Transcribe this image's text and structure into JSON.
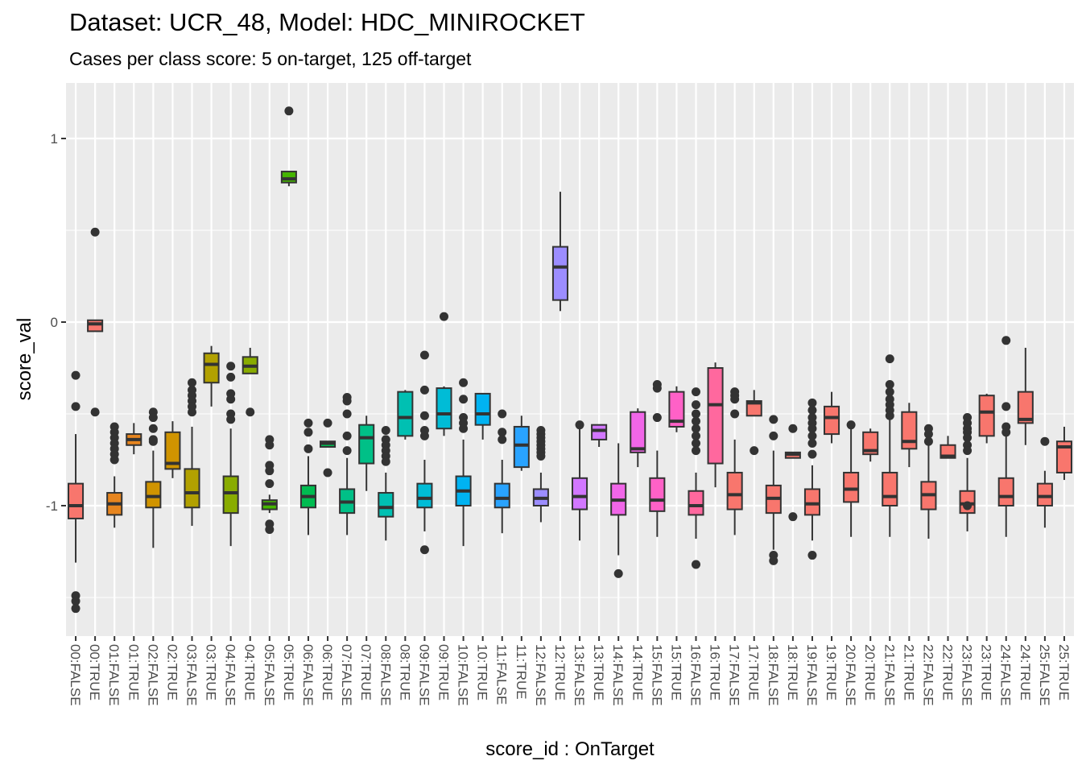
{
  "chart_data": {
    "type": "boxplot",
    "title": "Dataset: UCR_48, Model: HDC_MINIROCKET",
    "subtitle": "Cases per class score: 5 on-target, 125 off-target",
    "xlabel": "score_id : OnTarget",
    "ylabel": "score_val",
    "ylim": [
      -1.7,
      1.25
    ],
    "yticks": [
      1,
      0,
      -1
    ],
    "grid": true,
    "legend": "none",
    "categories": [
      "00:FALSE",
      "00:TRUE",
      "01:FALSE",
      "01:TRUE",
      "02:FALSE",
      "02:TRUE",
      "03:FALSE",
      "03:TRUE",
      "04:FALSE",
      "04:TRUE",
      "05:FALSE",
      "05:TRUE",
      "06:FALSE",
      "06:TRUE",
      "07:FALSE",
      "07:TRUE",
      "08:FALSE",
      "08:TRUE",
      "09:FALSE",
      "09:TRUE",
      "10:FALSE",
      "10:TRUE",
      "11:FALSE",
      "11:TRUE",
      "12:FALSE",
      "12:TRUE",
      "13:FALSE",
      "13:TRUE",
      "14:FALSE",
      "14:TRUE",
      "15:FALSE",
      "15:TRUE",
      "16:FALSE",
      "16:TRUE",
      "17:FALSE",
      "17:TRUE",
      "18:FALSE",
      "18:TRUE",
      "19:FALSE",
      "19:TRUE",
      "20:FALSE",
      "20:TRUE",
      "21:FALSE",
      "21:TRUE",
      "22:FALSE",
      "22:TRUE",
      "23:FALSE",
      "23:TRUE",
      "24:FALSE",
      "24:TRUE",
      "25:FALSE",
      "25:TRUE"
    ],
    "class_colors": [
      "#F8766D",
      "#E7851E",
      "#D09400",
      "#B2A100",
      "#89AC00",
      "#45B500",
      "#00BC51",
      "#00C087",
      "#00C0B2",
      "#00BCD6",
      "#00B3F2",
      "#29A3FF",
      "#9C8DFF",
      "#D277FF",
      "#F166E8",
      "#FF61C7",
      "#FF689E",
      "#F8766D",
      "#F8766D",
      "#F8766D",
      "#F8766D",
      "#F8766D",
      "#F8766D",
      "#F8766D",
      "#F8766D",
      "#F8766D"
    ],
    "boxes": [
      {
        "q1": -1.07,
        "med": -1.0,
        "q3": -0.88,
        "lo": -1.31,
        "hi": -0.61,
        "out": [
          -0.29,
          -0.46,
          -1.49,
          -1.52,
          -1.56
        ]
      },
      {
        "q1": -0.05,
        "med": -0.01,
        "q3": 0.01,
        "lo": -0.05,
        "hi": 0.01,
        "out": [
          0.49,
          -0.49
        ]
      },
      {
        "q1": -1.05,
        "med": -0.99,
        "q3": -0.93,
        "lo": -1.12,
        "hi": -0.84,
        "out": [
          -0.57,
          -0.6,
          -0.63,
          -0.66,
          -0.69,
          -0.72,
          -0.75
        ]
      },
      {
        "q1": -0.67,
        "med": -0.64,
        "q3": -0.61,
        "lo": -0.72,
        "hi": -0.55,
        "out": []
      },
      {
        "q1": -1.01,
        "med": -0.95,
        "q3": -0.87,
        "lo": -1.23,
        "hi": -0.7,
        "out": [
          -0.49,
          -0.52,
          -0.58,
          -0.64,
          -0.65
        ]
      },
      {
        "q1": -0.8,
        "med": -0.77,
        "q3": -0.6,
        "lo": -0.85,
        "hi": -0.54,
        "out": []
      },
      {
        "q1": -1.01,
        "med": -0.93,
        "q3": -0.8,
        "lo": -1.11,
        "hi": -0.57,
        "out": [
          -0.33,
          -0.37,
          -0.4,
          -0.43,
          -0.46,
          -0.49
        ]
      },
      {
        "q1": -0.33,
        "med": -0.23,
        "q3": -0.17,
        "lo": -0.46,
        "hi": -0.13,
        "out": []
      },
      {
        "q1": -1.04,
        "med": -0.93,
        "q3": -0.84,
        "lo": -1.22,
        "hi": -0.58,
        "out": [
          -0.24,
          -0.3,
          -0.39,
          -0.42,
          -0.5,
          -0.53
        ]
      },
      {
        "q1": -0.28,
        "med": -0.24,
        "q3": -0.19,
        "lo": -0.28,
        "hi": -0.14,
        "out": [
          -0.49
        ]
      },
      {
        "q1": -1.02,
        "med": -0.99,
        "q3": -0.97,
        "lo": -1.04,
        "hi": -0.94,
        "out": [
          -0.64,
          -0.67,
          -0.78,
          -0.81,
          -0.88,
          -1.1,
          -1.13
        ]
      },
      {
        "q1": 0.76,
        "med": 0.78,
        "q3": 0.82,
        "lo": 0.74,
        "hi": 0.82,
        "out": [
          1.15
        ]
      },
      {
        "q1": -1.01,
        "med": -0.95,
        "q3": -0.89,
        "lo": -1.16,
        "hi": -0.73,
        "out": [
          -0.55,
          -0.6,
          -0.69
        ]
      },
      {
        "q1": -0.68,
        "med": -0.66,
        "q3": -0.65,
        "lo": -0.68,
        "hi": -0.65,
        "out": [
          -0.55,
          -0.82
        ]
      },
      {
        "q1": -1.04,
        "med": -0.98,
        "q3": -0.91,
        "lo": -1.16,
        "hi": -0.74,
        "out": [
          -0.41,
          -0.43,
          -0.5,
          -0.62,
          -0.7
        ]
      },
      {
        "q1": -0.77,
        "med": -0.63,
        "q3": -0.56,
        "lo": -0.92,
        "hi": -0.51,
        "out": []
      },
      {
        "q1": -1.06,
        "med": -1.01,
        "q3": -0.93,
        "lo": -1.19,
        "hi": -0.82,
        "out": [
          -0.59,
          -0.64,
          -0.67,
          -0.7,
          -0.73,
          -0.76
        ]
      },
      {
        "q1": -0.62,
        "med": -0.52,
        "q3": -0.38,
        "lo": -0.64,
        "hi": -0.37,
        "out": []
      },
      {
        "q1": -1.01,
        "med": -0.96,
        "q3": -0.88,
        "lo": -1.14,
        "hi": -0.75,
        "out": [
          -0.18,
          -0.37,
          -0.51,
          -0.59,
          -0.62,
          -1.24
        ]
      },
      {
        "q1": -0.58,
        "med": -0.5,
        "q3": -0.36,
        "lo": -0.62,
        "hi": -0.35,
        "out": [
          0.03
        ]
      },
      {
        "q1": -1.0,
        "med": -0.92,
        "q3": -0.84,
        "lo": -1.22,
        "hi": -0.64,
        "out": [
          -0.33,
          -0.42,
          -0.52,
          -0.55,
          -0.58
        ]
      },
      {
        "q1": -0.56,
        "med": -0.5,
        "q3": -0.39,
        "lo": -0.64,
        "hi": -0.39,
        "out": []
      },
      {
        "q1": -1.01,
        "med": -0.96,
        "q3": -0.88,
        "lo": -1.15,
        "hi": -0.75,
        "out": [
          -0.5,
          -0.6,
          -0.64
        ]
      },
      {
        "q1": -0.79,
        "med": -0.67,
        "q3": -0.57,
        "lo": -0.81,
        "hi": -0.51,
        "out": []
      },
      {
        "q1": -1.0,
        "med": -0.96,
        "q3": -0.91,
        "lo": -1.09,
        "hi": -0.82,
        "out": [
          -0.59,
          -0.61,
          -0.63,
          -0.65,
          -0.67,
          -0.69,
          -0.71,
          -0.73
        ]
      },
      {
        "q1": 0.12,
        "med": 0.3,
        "q3": 0.41,
        "lo": 0.06,
        "hi": 0.71,
        "out": []
      },
      {
        "q1": -1.02,
        "med": -0.95,
        "q3": -0.85,
        "lo": -1.19,
        "hi": -0.57,
        "out": [
          -0.56
        ]
      },
      {
        "q1": -0.64,
        "med": -0.59,
        "q3": -0.56,
        "lo": -0.68,
        "hi": -0.56,
        "out": []
      },
      {
        "q1": -1.05,
        "med": -0.97,
        "q3": -0.88,
        "lo": -1.27,
        "hi": -0.66,
        "out": [
          -1.37
        ]
      },
      {
        "q1": -0.71,
        "med": -0.69,
        "q3": -0.49,
        "lo": -0.79,
        "hi": -0.47,
        "out": []
      },
      {
        "q1": -1.03,
        "med": -0.97,
        "q3": -0.85,
        "lo": -1.17,
        "hi": -0.7,
        "out": [
          -0.34,
          -0.36,
          -0.52
        ]
      },
      {
        "q1": -0.57,
        "med": -0.54,
        "q3": -0.38,
        "lo": -0.6,
        "hi": -0.35,
        "out": []
      },
      {
        "q1": -1.05,
        "med": -1.0,
        "q3": -0.92,
        "lo": -1.18,
        "hi": -0.82,
        "out": [
          -0.38,
          -0.45,
          -0.5,
          -0.54,
          -0.58,
          -0.62,
          -0.66,
          -0.7,
          -1.32
        ]
      },
      {
        "q1": -0.77,
        "med": -0.45,
        "q3": -0.25,
        "lo": -0.9,
        "hi": -0.22,
        "out": []
      },
      {
        "q1": -1.02,
        "med": -0.94,
        "q3": -0.82,
        "lo": -1.16,
        "hi": -0.64,
        "out": [
          -0.38,
          -0.4,
          -0.42,
          -0.5
        ]
      },
      {
        "q1": -0.51,
        "med": -0.44,
        "q3": -0.43,
        "lo": -0.51,
        "hi": -0.37,
        "out": [
          -0.7
        ]
      },
      {
        "q1": -1.04,
        "med": -0.96,
        "q3": -0.89,
        "lo": -1.24,
        "hi": -0.7,
        "out": [
          -0.53,
          -0.62,
          -1.27,
          -1.3
        ]
      },
      {
        "q1": -0.74,
        "med": -0.72,
        "q3": -0.71,
        "lo": -0.74,
        "hi": -0.71,
        "out": [
          -0.58,
          -1.06
        ]
      },
      {
        "q1": -1.05,
        "med": -0.99,
        "q3": -0.91,
        "lo": -1.19,
        "hi": -0.78,
        "out": [
          -0.44,
          -0.48,
          -0.52,
          -0.55,
          -0.58,
          -0.62,
          -0.66,
          -0.72,
          -1.27
        ]
      },
      {
        "q1": -0.61,
        "med": -0.52,
        "q3": -0.46,
        "lo": -0.66,
        "hi": -0.38,
        "out": []
      },
      {
        "q1": -0.98,
        "med": -0.91,
        "q3": -0.82,
        "lo": -1.17,
        "hi": -0.56,
        "out": [
          -0.56
        ]
      },
      {
        "q1": -0.72,
        "med": -0.7,
        "q3": -0.6,
        "lo": -0.76,
        "hi": -0.58,
        "out": []
      },
      {
        "q1": -1.0,
        "med": -0.95,
        "q3": -0.82,
        "lo": -1.17,
        "hi": -0.53,
        "out": [
          -0.2,
          -0.34,
          -0.38,
          -0.42,
          -0.45,
          -0.48,
          -0.51
        ]
      },
      {
        "q1": -0.69,
        "med": -0.65,
        "q3": -0.49,
        "lo": -0.79,
        "hi": -0.44,
        "out": []
      },
      {
        "q1": -1.02,
        "med": -0.94,
        "q3": -0.87,
        "lo": -1.18,
        "hi": -0.6,
        "out": [
          -0.58,
          -0.61,
          -0.65
        ]
      },
      {
        "q1": -0.74,
        "med": -0.73,
        "q3": -0.67,
        "lo": -0.74,
        "hi": -0.62,
        "out": []
      },
      {
        "q1": -1.04,
        "med": -0.99,
        "q3": -0.92,
        "lo": -1.14,
        "hi": -0.74,
        "out": [
          -0.52,
          -0.55,
          -0.58,
          -0.6,
          -0.63,
          -0.67,
          -0.7,
          -1.0
        ]
      },
      {
        "q1": -0.62,
        "med": -0.49,
        "q3": -0.4,
        "lo": -0.66,
        "hi": -0.39,
        "out": []
      },
      {
        "q1": -1.0,
        "med": -0.95,
        "q3": -0.85,
        "lo": -1.17,
        "hi": -0.61,
        "out": [
          -0.1,
          -0.46,
          -0.57,
          -0.6
        ]
      },
      {
        "q1": -0.55,
        "med": -0.53,
        "q3": -0.38,
        "lo": -0.67,
        "hi": -0.14,
        "out": []
      },
      {
        "q1": -1.0,
        "med": -0.95,
        "q3": -0.88,
        "lo": -1.12,
        "hi": -0.81,
        "out": [
          -0.65
        ]
      },
      {
        "q1": -0.82,
        "med": -0.68,
        "q3": -0.65,
        "lo": -0.86,
        "hi": -0.57,
        "out": []
      }
    ]
  }
}
